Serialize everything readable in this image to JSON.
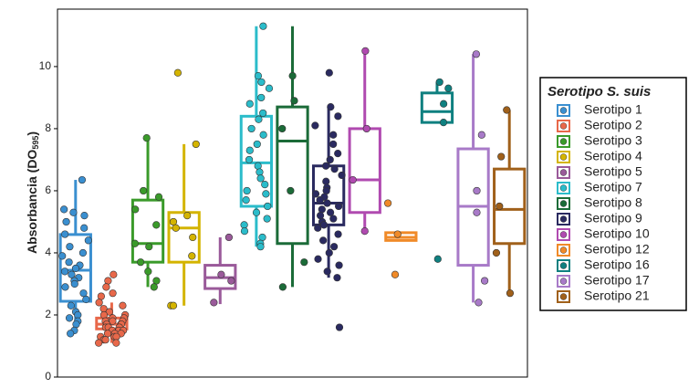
{
  "chart_data": {
    "type": "box",
    "ylabel_parts": [
      "Absorbancia (DO",
      "595",
      ")"
    ],
    "ylim": [
      0,
      11.85
    ],
    "yticks": [
      0,
      2,
      4,
      6,
      8,
      10
    ],
    "legend_title": "Serotipo",
    "legend_title_italic": "S. suis",
    "legend_position": "right",
    "series": [
      {
        "name": "Serotipo 1",
        "color": "#3a8fd0",
        "min": 1.4,
        "q1": 2.44,
        "median": 3.44,
        "q3": 4.59,
        "max": 6.35,
        "points": [
          6.35,
          5.4,
          5.3,
          5.2,
          5.0,
          4.8,
          4.6,
          4.4,
          4.2,
          4.0,
          3.9,
          3.7,
          3.6,
          3.5,
          3.4,
          3.3,
          3.2,
          3.1,
          3.0,
          2.9,
          2.7,
          2.5,
          2.3,
          2.1,
          2.0,
          1.9,
          1.8,
          1.7,
          1.5,
          1.4
        ]
      },
      {
        "name": "Serotipo 2",
        "color": "#e8684a",
        "min": 1.1,
        "q1": 1.55,
        "median": 1.7,
        "q3": 1.9,
        "max": 2.4,
        "points": [
          3.3,
          3.1,
          2.9,
          2.7,
          2.6,
          2.4,
          2.3,
          2.2,
          2.1,
          2.0,
          2.0,
          1.9,
          1.9,
          1.8,
          1.8,
          1.8,
          1.7,
          1.7,
          1.7,
          1.6,
          1.6,
          1.6,
          1.5,
          1.5,
          1.5,
          1.4,
          1.4,
          1.4,
          1.3,
          1.3,
          1.3,
          1.2,
          1.2,
          1.1,
          1.1
        ]
      },
      {
        "name": "Serotipo 3",
        "color": "#3a9a2a",
        "min": 2.9,
        "q1": 3.7,
        "median": 4.3,
        "q3": 5.7,
        "max": 7.7,
        "points": [
          7.7,
          6.0,
          5.8,
          5.4,
          4.9,
          4.3,
          4.2,
          3.7,
          3.4,
          3.1,
          2.9
        ]
      },
      {
        "name": "Serotipo 4",
        "color": "#d4b400",
        "min": 2.3,
        "q1": 3.7,
        "median": 4.8,
        "q3": 5.3,
        "max": 7.5,
        "points": [
          9.8,
          7.5,
          5.2,
          5.0,
          4.8,
          4.5,
          3.9,
          2.3,
          2.3
        ]
      },
      {
        "name": "Serotipo 5",
        "color": "#9a5a9a",
        "min": 2.35,
        "q1": 2.85,
        "median": 3.2,
        "q3": 3.6,
        "max": 4.5,
        "points": [
          4.5,
          3.3,
          3.1,
          2.4
        ]
      },
      {
        "name": "Serotipo 7",
        "color": "#2bbcca",
        "min": 4.2,
        "q1": 5.5,
        "median": 6.9,
        "q3": 8.4,
        "max": 11.3,
        "points": [
          11.3,
          9.7,
          9.5,
          9.3,
          9.0,
          8.8,
          8.5,
          8.3,
          8.0,
          7.8,
          7.5,
          7.3,
          7.0,
          6.8,
          6.6,
          6.4,
          6.2,
          6.0,
          5.9,
          5.7,
          5.5,
          5.3,
          5.1,
          4.9,
          4.7,
          4.5,
          4.3,
          4.2
        ]
      },
      {
        "name": "Serotipo 8",
        "color": "#1b6b38",
        "min": 2.9,
        "q1": 4.3,
        "median": 7.6,
        "q3": 8.7,
        "max": 11.3,
        "points": [
          9.7,
          8.9,
          8.0,
          6.0,
          3.7,
          2.9
        ]
      },
      {
        "name": "Serotipo 9",
        "color": "#2a2a60",
        "min": 3.2,
        "q1": 4.9,
        "median": 5.6,
        "q3": 6.8,
        "max": 8.7,
        "points": [
          9.8,
          8.7,
          8.4,
          8.1,
          7.8,
          7.5,
          7.2,
          7.0,
          6.8,
          6.7,
          6.5,
          6.3,
          6.1,
          6.0,
          5.9,
          5.8,
          5.7,
          5.6,
          5.5,
          5.4,
          5.3,
          5.2,
          5.1,
          5.0,
          4.9,
          4.8,
          4.6,
          4.4,
          4.2,
          4.0,
          3.8,
          3.6,
          3.4,
          3.2,
          1.6
        ]
      },
      {
        "name": "Serotipo 10",
        "color": "#b04ab0",
        "min": 4.7,
        "q1": 5.3,
        "median": 6.35,
        "q3": 8.0,
        "max": 10.5,
        "points": [
          10.5,
          8.0,
          6.35,
          4.7
        ]
      },
      {
        "name": "Serotipo 12",
        "color": "#f08a28",
        "min": 4.4,
        "q1": 4.4,
        "median": 4.5,
        "q3": 4.65,
        "max": 4.65,
        "points": [
          5.6,
          4.6,
          3.3
        ]
      },
      {
        "name": "Serotipo 16",
        "color": "#0f8080",
        "min": 8.2,
        "q1": 8.2,
        "median": 8.55,
        "q3": 9.15,
        "max": 9.5,
        "points": [
          9.5,
          9.3,
          8.8,
          8.2,
          3.8
        ]
      },
      {
        "name": "Serotipo 17",
        "color": "#a87ac8",
        "min": 2.4,
        "q1": 3.6,
        "median": 5.5,
        "q3": 7.35,
        "max": 10.4,
        "points": [
          10.4,
          7.8,
          6.0,
          5.3,
          3.1,
          2.4
        ]
      },
      {
        "name": "Serotipo 21",
        "color": "#a0601a",
        "min": 2.7,
        "q1": 4.3,
        "median": 5.4,
        "q3": 6.7,
        "max": 8.6,
        "points": [
          8.6,
          7.1,
          5.5,
          4.0,
          2.7
        ]
      }
    ]
  }
}
